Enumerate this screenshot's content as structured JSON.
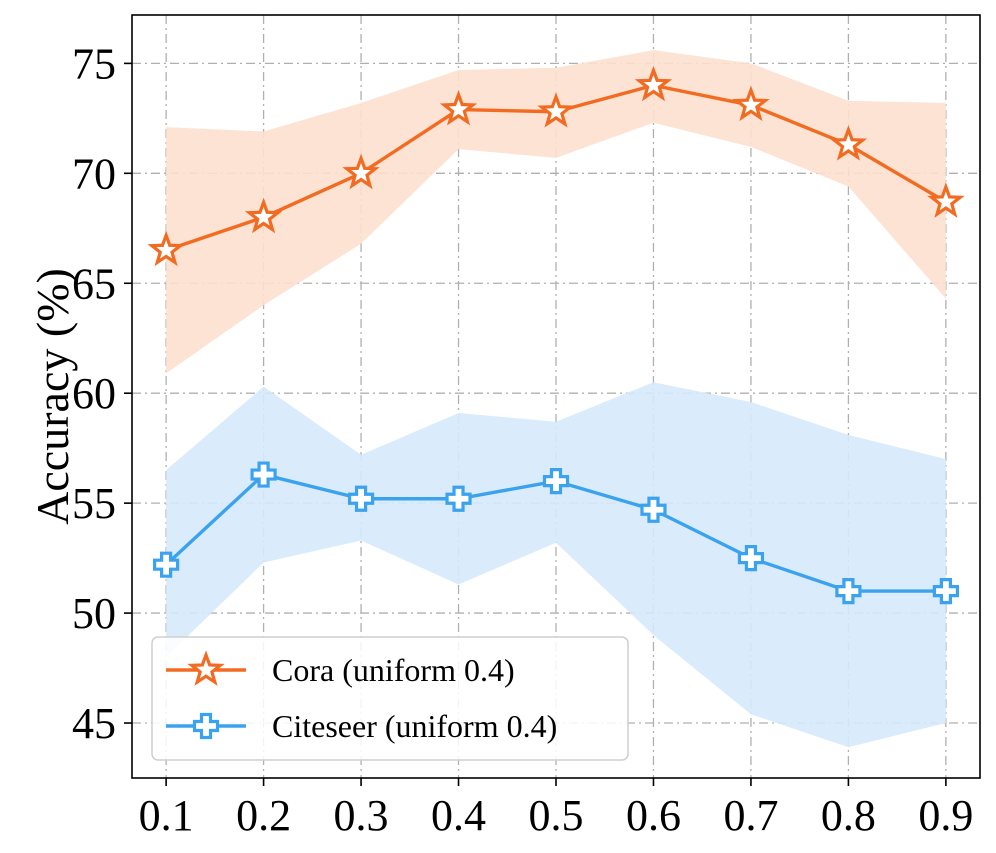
{
  "chart_data": {
    "type": "line",
    "title": "",
    "xlabel": "",
    "ylabel": "Accuracy (%)",
    "x": [
      0.1,
      0.2,
      0.3,
      0.4,
      0.5,
      0.6,
      0.7,
      0.8,
      0.9
    ],
    "x_tick_labels": [
      "0.1",
      "0.2",
      "0.3",
      "0.4",
      "0.5",
      "0.6",
      "0.7",
      "0.8",
      "0.9"
    ],
    "xlim": [
      0.065,
      0.935
    ],
    "ylim": [
      42.5,
      77.2
    ],
    "y_ticks": [
      45,
      50,
      55,
      60,
      65,
      70,
      75
    ],
    "y_tick_labels": [
      "45",
      "50",
      "55",
      "60",
      "65",
      "70",
      "75"
    ],
    "grid": true,
    "legend_position": "lower-left",
    "series": [
      {
        "name": "Cora (uniform 0.4)",
        "marker": "star",
        "color": "#f26b21",
        "band_color": "#fde0cf",
        "values": [
          66.5,
          68.0,
          70.0,
          72.9,
          72.8,
          74.0,
          73.1,
          71.3,
          68.7
        ],
        "lower": [
          60.9,
          64.0,
          66.8,
          71.1,
          70.7,
          72.3,
          71.2,
          69.4,
          64.3
        ],
        "upper": [
          72.1,
          71.9,
          73.2,
          74.7,
          74.8,
          75.6,
          75.0,
          73.3,
          73.2
        ]
      },
      {
        "name": "Citeseer (uniform 0.4)",
        "marker": "plus",
        "color": "#3ba2ef",
        "band_color": "#d6eafb",
        "values": [
          52.2,
          56.3,
          55.2,
          55.2,
          56.0,
          54.7,
          52.5,
          51.0,
          51.0
        ],
        "lower": [
          48.0,
          52.3,
          53.3,
          51.3,
          53.2,
          49.0,
          45.4,
          43.9,
          45.0
        ],
        "upper": [
          56.5,
          60.3,
          57.2,
          59.1,
          58.7,
          60.5,
          59.6,
          58.1,
          57.0
        ]
      }
    ]
  }
}
